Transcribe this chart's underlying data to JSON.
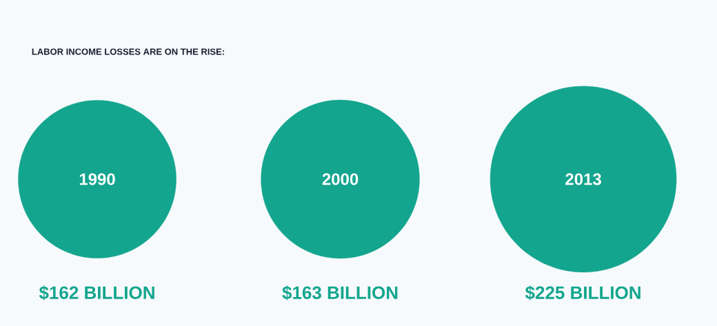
{
  "chart_data": {
    "type": "other",
    "title": "LABOR INCOME LOSSES ARE ON THE RISE:",
    "categories": [
      "1990",
      "2000",
      "2013"
    ],
    "values": [
      162,
      163,
      225
    ],
    "value_labels": [
      "$162 BILLION",
      "$163 BILLION",
      "$225 BILLION"
    ],
    "colors": [
      "#13a58e",
      "#13a58e",
      "#13a58e"
    ]
  }
}
